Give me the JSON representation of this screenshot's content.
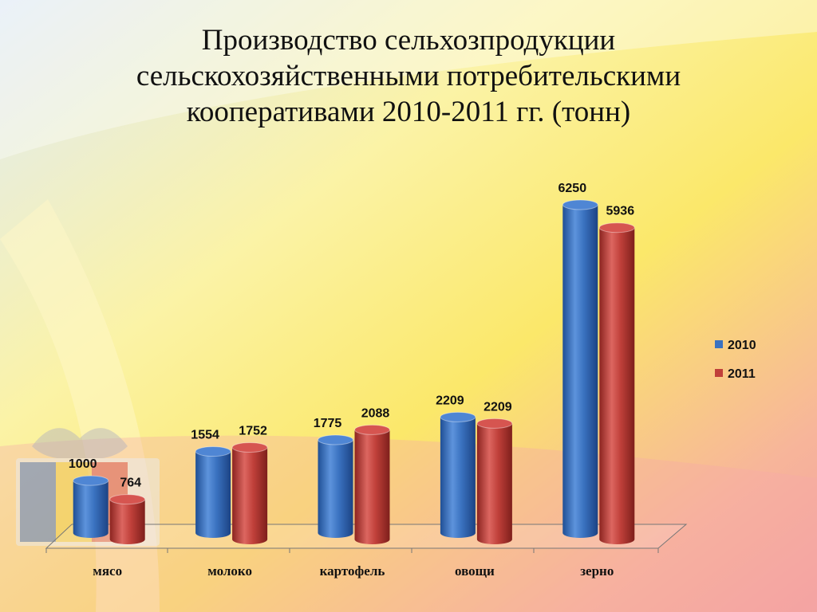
{
  "chart_data": {
    "type": "bar",
    "title": "Производство сельхозпродукции сельскохозяйственными потребительскими кооперативами 2010-2011 гг. (тонн)",
    "categories": [
      "мясо",
      "молоко",
      "картофель",
      "овощи",
      "зерно"
    ],
    "series": [
      {
        "name": "2010",
        "values": [
          1000,
          1554,
          1775,
          2209,
          6250
        ],
        "color": "#3a72c0"
      },
      {
        "name": "2011",
        "values": [
          764,
          1752,
          2088,
          2209,
          5936
        ],
        "color": "#c0403a"
      }
    ],
    "ylim": [
      0,
      7000
    ],
    "grid": false,
    "legend": "right",
    "style": "3d-cylinder"
  }
}
